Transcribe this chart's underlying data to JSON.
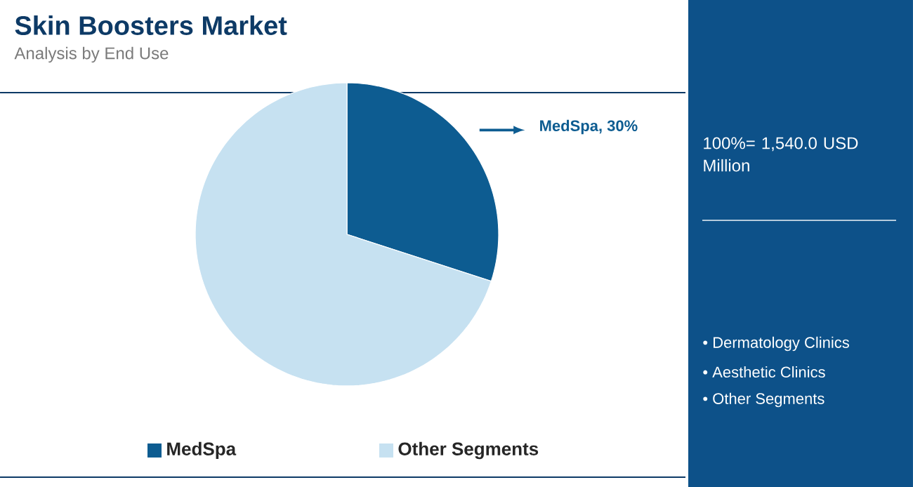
{
  "chart_data": {
    "type": "pie",
    "title": "Skin Boosters Market",
    "subtitle": "Analysis by End Use",
    "categories": [
      "MedSpa",
      "Other Segments"
    ],
    "values": [
      30,
      70
    ],
    "colors": [
      "#0d5c91",
      "#c6e1f1"
    ],
    "value_labels": [
      "MedSpa, 30%",
      null
    ],
    "legend": "bottom",
    "annotations": [
      "100%= 1,540.0 USD Million",
      "• Dermatology Clinics",
      "• Aesthetic Clinics",
      "• Other Segments"
    ]
  }
}
